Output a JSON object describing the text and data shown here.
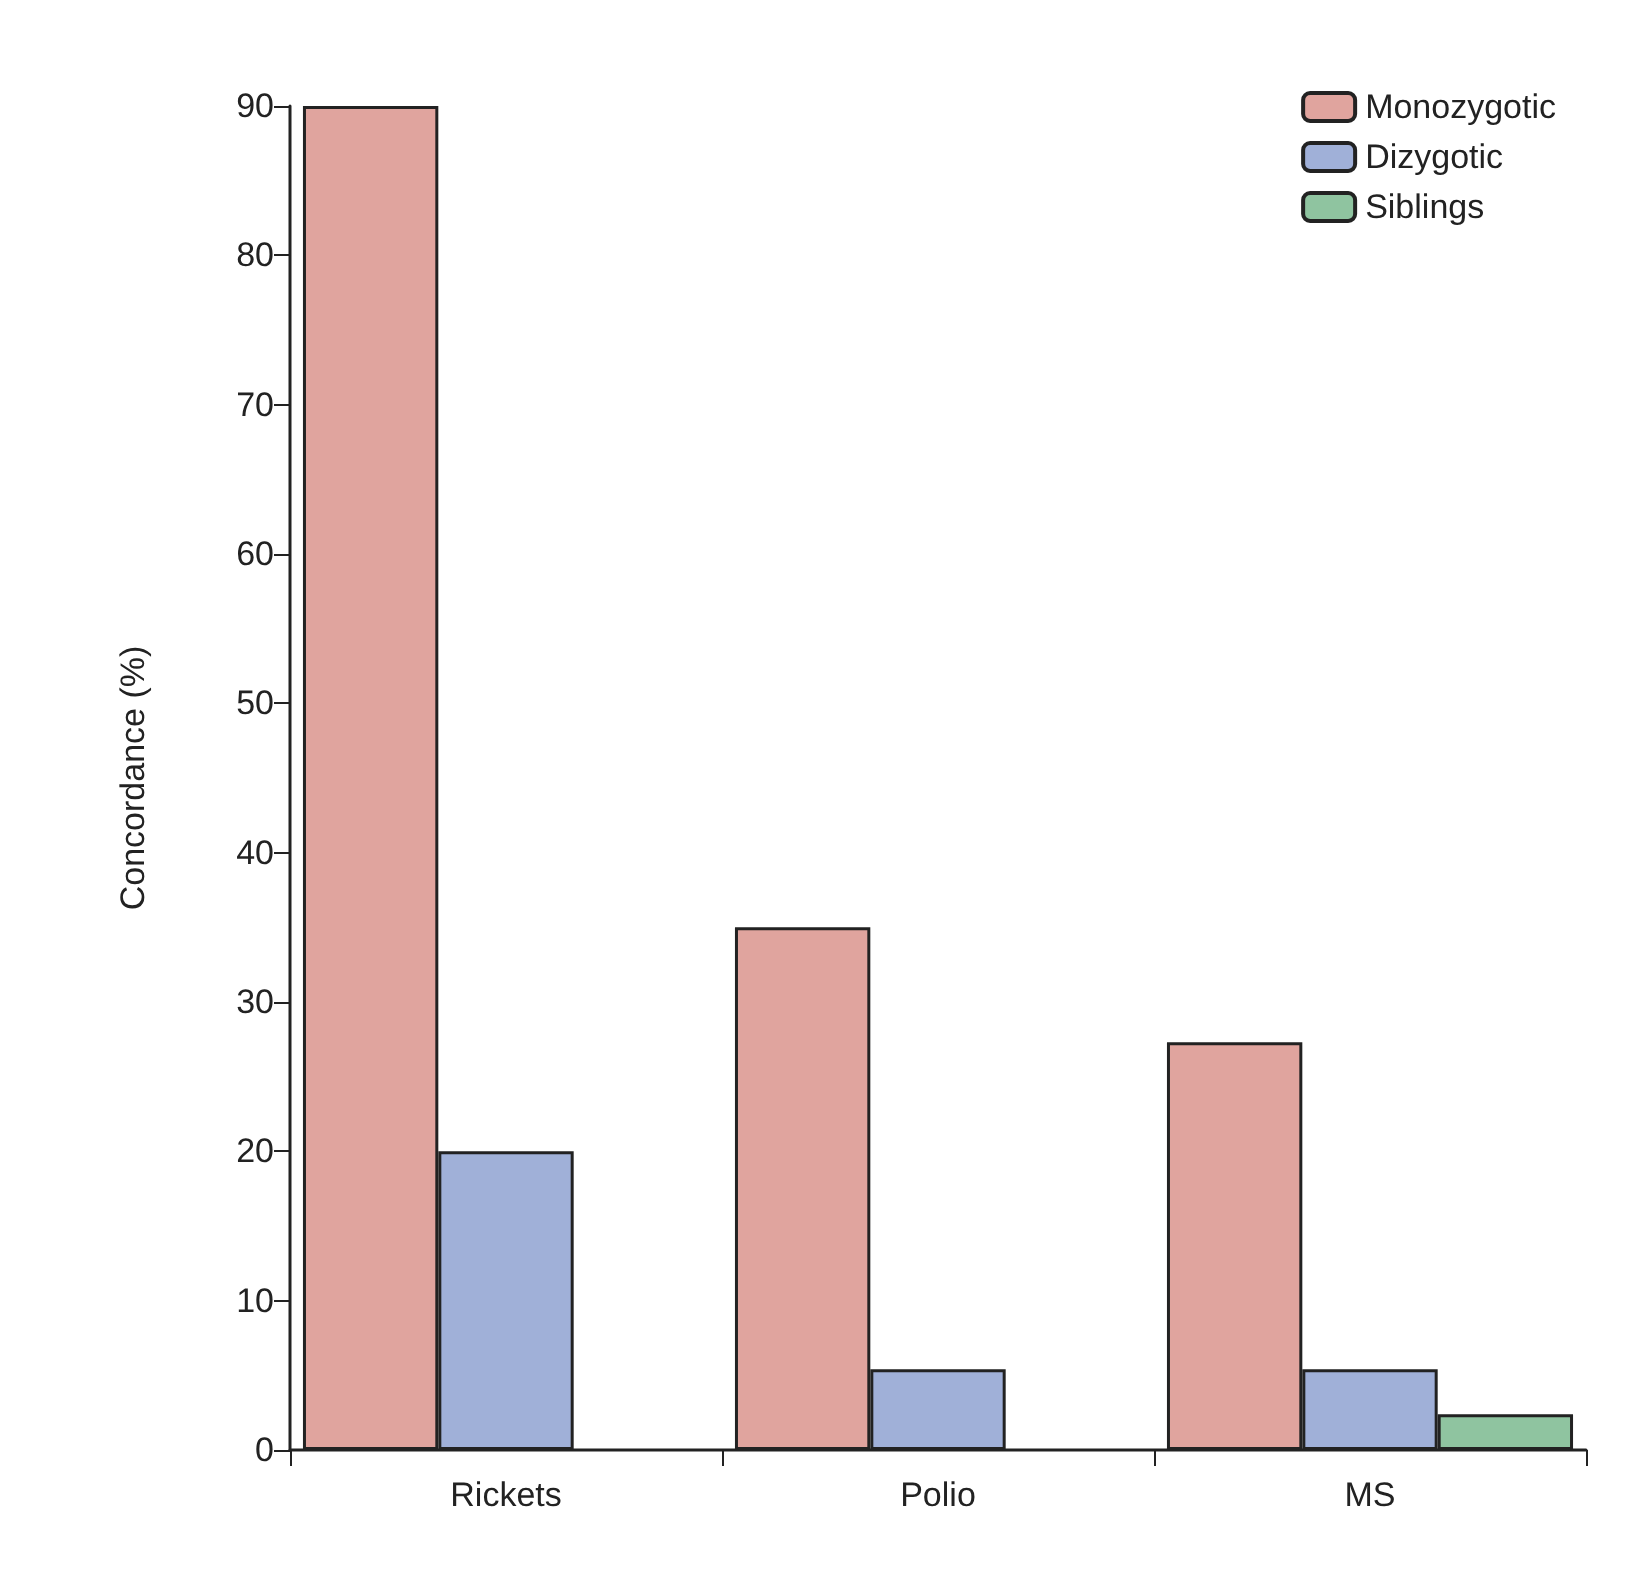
{
  "chart_data": {
    "type": "bar",
    "ylabel": "Concordance (%)",
    "categories": [
      "Rickets",
      "Polio",
      "MS"
    ],
    "series": [
      {
        "name": "Monozygotic",
        "color": "#e0a49e",
        "values": [
          90,
          35,
          27.3
        ]
      },
      {
        "name": "Dizygotic",
        "color": "#a0b0d8",
        "values": [
          20,
          5.4,
          5.4
        ]
      },
      {
        "name": "Siblings",
        "color": "#8fc4a0",
        "values": [
          null,
          null,
          2.4
        ]
      }
    ],
    "ylim": [
      0,
      90
    ],
    "yticks": [
      0,
      10,
      20,
      30,
      40,
      50,
      60,
      70,
      80,
      90
    ],
    "grid": false,
    "legend": "top right"
  }
}
